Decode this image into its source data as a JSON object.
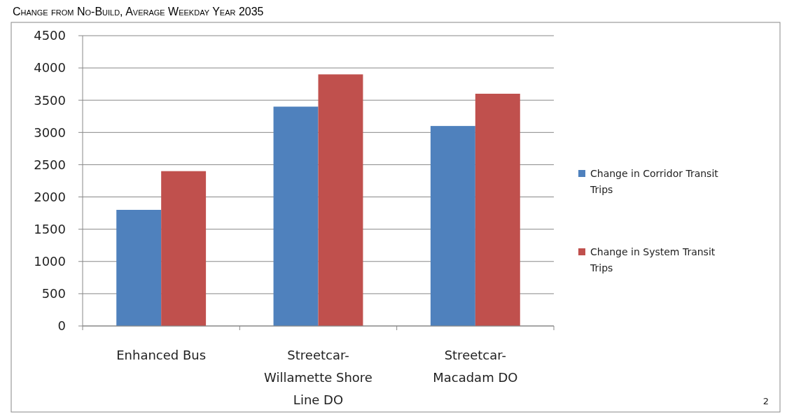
{
  "chart_data": {
    "type": "bar",
    "title": "Change from No-Build, Average Weekday Year 2035",
    "categories": [
      "Enhanced Bus",
      "Streetcar-Willamette Shore Line DO",
      "Streetcar-Macadam DO"
    ],
    "series": [
      {
        "name": "Change in Corridor Transit Trips",
        "color": "#4f81bd",
        "values": [
          1800,
          3400,
          3100
        ]
      },
      {
        "name": "Change in System Transit Trips",
        "color": "#c0504d",
        "values": [
          2400,
          3900,
          3600
        ]
      }
    ],
    "ylim": [
      0,
      4500
    ],
    "yticks": [
      0,
      500,
      1000,
      1500,
      2000,
      2500,
      3000,
      3500,
      4000,
      4500
    ],
    "grid": "y",
    "legend": "right",
    "annotations": [
      "2"
    ]
  }
}
